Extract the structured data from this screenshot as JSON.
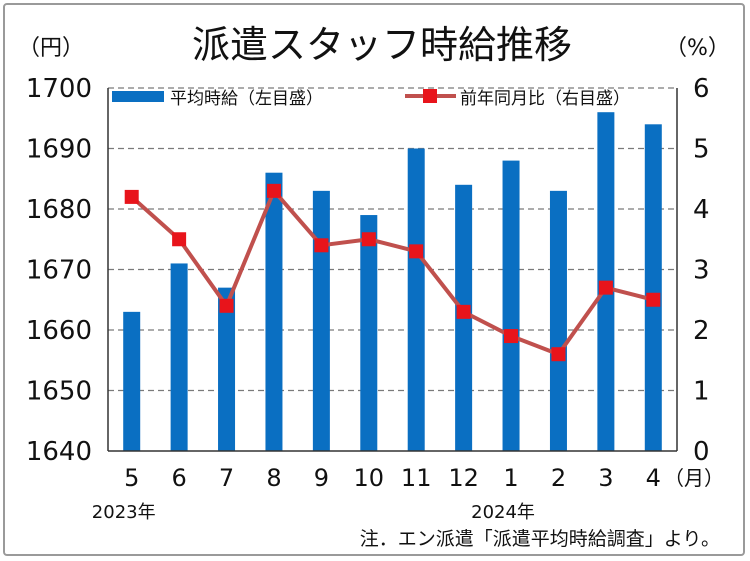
{
  "chart_data": {
    "type": "bar+line",
    "title": "派遣スタッフ時給推移",
    "left_unit": "（円）",
    "right_unit": "（%）",
    "x_unit": "（月）",
    "categories": [
      "5",
      "6",
      "7",
      "8",
      "9",
      "10",
      "11",
      "12",
      "1",
      "2",
      "3",
      "4"
    ],
    "year_labels": [
      {
        "text": "2023年",
        "category_index": 0
      },
      {
        "text": "2024年",
        "category_index": 8
      }
    ],
    "left_axis": {
      "min": 1640,
      "max": 1700,
      "step": 10,
      "ticks": [
        "1640",
        "1650",
        "1660",
        "1670",
        "1680",
        "1690",
        "1700"
      ]
    },
    "right_axis": {
      "min": 0,
      "max": 6,
      "step": 1,
      "ticks": [
        "0",
        "1",
        "2",
        "3",
        "4",
        "5",
        "6"
      ]
    },
    "grid": "horizontal-dashed",
    "legend_placement": "top",
    "series": [
      {
        "name": "平均時給（左目盛）",
        "type": "bar",
        "axis": "left",
        "color": "#0a6fc2",
        "values": [
          1663,
          1671,
          1667,
          1686,
          1683,
          1679,
          1690,
          1684,
          1688,
          1683,
          1696,
          1694
        ]
      },
      {
        "name": "前年同月比（右目盛）",
        "type": "line",
        "axis": "right",
        "color": "#c0504d",
        "marker_color": "#e8141b",
        "values": [
          4.2,
          3.5,
          2.4,
          4.3,
          3.4,
          3.5,
          3.3,
          2.3,
          1.9,
          1.6,
          2.7,
          2.5
        ]
      }
    ],
    "note": "注．エン派遣「派遣平均時給調査」より。"
  }
}
